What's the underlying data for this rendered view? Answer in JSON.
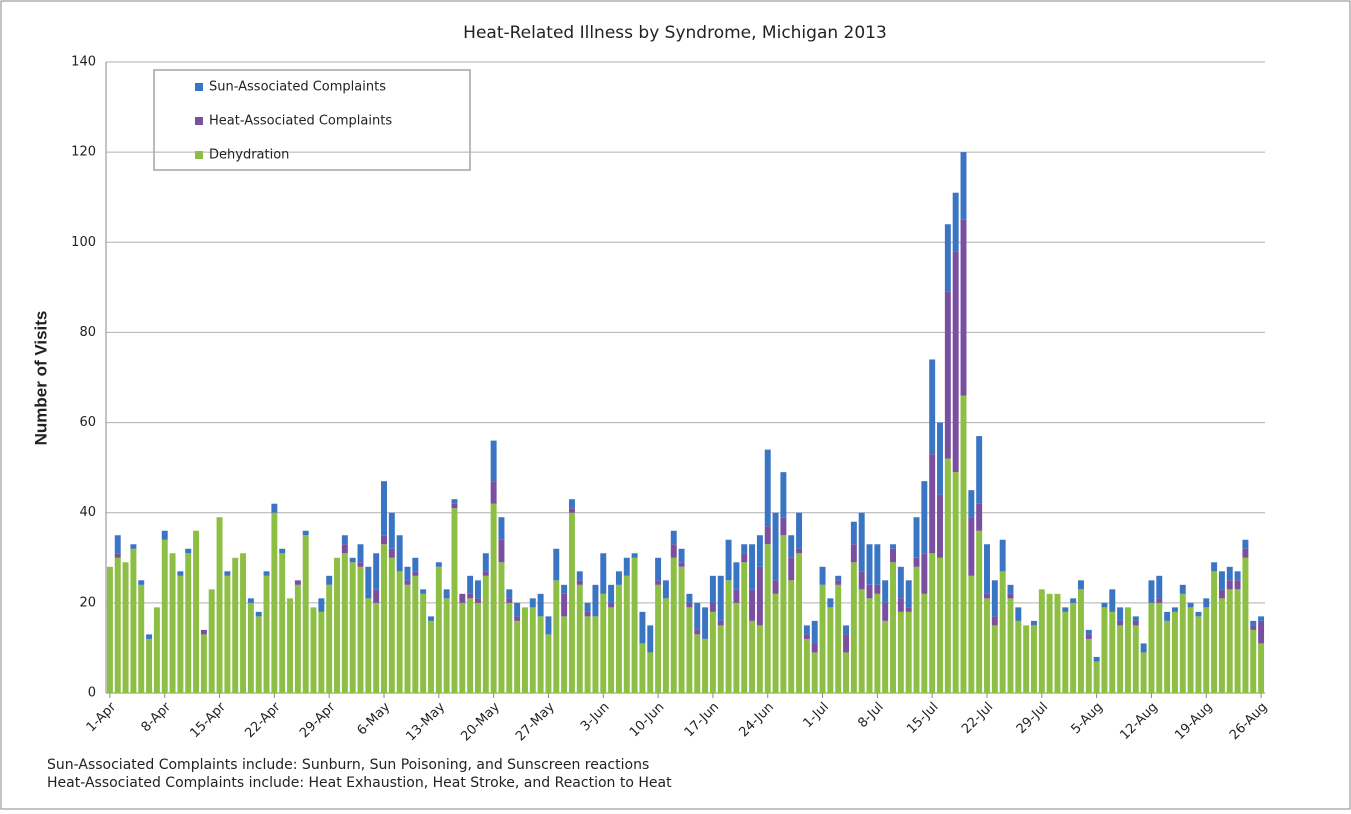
{
  "chart_data": {
    "type": "stacked-bar",
    "title": "Heat-Related Illness by Syndrome, Michigan 2013",
    "y_label": "Number of Visits",
    "notes": [
      "Sun-Associated Complaints include: Sunburn, Sun Poisoning, and Sunscreen reactions",
      "Heat-Associated Complaints include: Heat Exhaustion, Heat Stroke, and Reaction to Heat"
    ],
    "categories": [
      "1-Apr",
      null,
      null,
      null,
      null,
      null,
      null,
      "8-Apr",
      null,
      null,
      null,
      null,
      null,
      null,
      "15-Apr",
      null,
      null,
      null,
      null,
      null,
      null,
      "22-Apr",
      null,
      null,
      null,
      null,
      null,
      null,
      "29-Apr",
      null,
      null,
      null,
      null,
      null,
      null,
      "6-May",
      null,
      null,
      null,
      null,
      null,
      null,
      "13-May",
      null,
      null,
      null,
      null,
      null,
      null,
      "20-May",
      null,
      null,
      null,
      null,
      null,
      null,
      "27-May",
      null,
      null,
      null,
      null,
      null,
      null,
      "3-Jun",
      null,
      null,
      null,
      null,
      null,
      null,
      "10-Jun",
      null,
      null,
      null,
      null,
      null,
      null,
      "17-Jun",
      null,
      null,
      null,
      null,
      null,
      null,
      "24-Jun",
      null,
      null,
      null,
      null,
      null,
      null,
      "1-Jul",
      null,
      null,
      null,
      null,
      null,
      null,
      "8-Jul",
      null,
      null,
      null,
      null,
      null,
      null,
      "15-Jul",
      null,
      null,
      null,
      null,
      null,
      null,
      "22-Jul",
      null,
      null,
      null,
      null,
      null,
      null,
      "29-Jul",
      null,
      null,
      null,
      null,
      null,
      null,
      "5-Aug",
      null,
      null,
      null,
      null,
      null,
      null,
      "12-Aug",
      null,
      null,
      null,
      null,
      null,
      null,
      "19-Aug",
      null,
      null,
      null,
      null,
      null,
      null,
      "26-Aug"
    ],
    "series": [
      {
        "name": "Sun-Associated Complaints",
        "color": "#3a75c4",
        "values": [
          0,
          4,
          0,
          1,
          1,
          1,
          0,
          2,
          0,
          1,
          1,
          0,
          0,
          0,
          0,
          1,
          0,
          0,
          1,
          1,
          1,
          2,
          1,
          0,
          0,
          1,
          0,
          3,
          2,
          0,
          2,
          1,
          4,
          7,
          8,
          12,
          8,
          8,
          3,
          3,
          1,
          1,
          1,
          2,
          1,
          0,
          4,
          4,
          4,
          9,
          5,
          2,
          3,
          0,
          2,
          5,
          4,
          7,
          2,
          2,
          2,
          2,
          7,
          9,
          4,
          3,
          4,
          1,
          7,
          6,
          5,
          4,
          3,
          3,
          2,
          6,
          7,
          6,
          10,
          9,
          6,
          2,
          10,
          7,
          17,
          15,
          10,
          5,
          8,
          2,
          5,
          4,
          2,
          1,
          2,
          5,
          13,
          9,
          9,
          5,
          1,
          7,
          6,
          9,
          16,
          21,
          16,
          15,
          13,
          15,
          6,
          15,
          11,
          8,
          7,
          2,
          3,
          0,
          1,
          0,
          0,
          0,
          1,
          1,
          2,
          1,
          1,
          1,
          5,
          3,
          0,
          1,
          2,
          5,
          5,
          2,
          1,
          2,
          1,
          1,
          2,
          2,
          4,
          3,
          2,
          2,
          1,
          1
        ]
      },
      {
        "name": "Heat-Associated Complaints",
        "color": "#7a4fa0",
        "values": [
          0,
          1,
          0,
          0,
          0,
          0,
          0,
          0,
          0,
          0,
          0,
          0,
          1,
          0,
          0,
          0,
          0,
          0,
          0,
          0,
          0,
          0,
          0,
          0,
          1,
          0,
          0,
          0,
          0,
          0,
          2,
          0,
          1,
          0,
          3,
          2,
          2,
          0,
          1,
          1,
          0,
          0,
          0,
          0,
          1,
          2,
          1,
          1,
          1,
          5,
          5,
          1,
          1,
          0,
          0,
          0,
          0,
          0,
          5,
          1,
          1,
          1,
          0,
          0,
          1,
          0,
          0,
          0,
          0,
          0,
          1,
          0,
          3,
          1,
          1,
          1,
          0,
          2,
          1,
          0,
          3,
          2,
          7,
          13,
          4,
          3,
          4,
          5,
          1,
          1,
          2,
          0,
          0,
          1,
          4,
          4,
          4,
          3,
          2,
          4,
          3,
          3,
          1,
          2,
          9,
          22,
          14,
          37,
          49,
          39,
          13,
          6,
          1,
          2,
          0,
          1,
          0,
          0,
          0,
          0,
          0,
          0,
          0,
          0,
          0,
          1,
          0,
          0,
          0,
          1,
          0,
          1,
          0,
          0,
          1,
          0,
          0,
          0,
          0,
          0,
          0,
          0,
          2,
          2,
          2,
          2,
          1,
          5
        ]
      },
      {
        "name": "Dehydration",
        "color": "#8dbf45",
        "values": [
          28,
          30,
          29,
          32,
          24,
          12,
          19,
          34,
          31,
          26,
          31,
          36,
          13,
          23,
          39,
          26,
          30,
          31,
          20,
          17,
          26,
          40,
          31,
          21,
          24,
          35,
          19,
          18,
          24,
          30,
          31,
          29,
          28,
          21,
          20,
          33,
          30,
          27,
          24,
          26,
          22,
          16,
          28,
          21,
          41,
          20,
          21,
          20,
          26,
          42,
          29,
          20,
          16,
          19,
          19,
          17,
          13,
          25,
          17,
          40,
          24,
          17,
          17,
          22,
          19,
          24,
          26,
          30,
          11,
          9,
          24,
          21,
          30,
          28,
          19,
          13,
          12,
          18,
          15,
          25,
          20,
          29,
          16,
          15,
          33,
          22,
          35,
          25,
          31,
          12,
          9,
          24,
          19,
          24,
          9,
          29,
          23,
          21,
          22,
          16,
          29,
          18,
          18,
          28,
          22,
          31,
          30,
          52,
          49,
          66,
          26,
          36,
          21,
          15,
          27,
          21,
          16,
          15,
          15,
          23,
          22,
          22,
          18,
          20,
          23,
          12,
          7,
          19,
          18,
          15,
          19,
          15,
          9,
          20,
          20,
          16,
          18,
          22,
          19,
          17,
          19,
          27,
          21,
          23,
          23,
          30,
          14,
          11
        ]
      }
    ],
    "ylim": [
      0,
      140
    ],
    "yticks": [
      0,
      20,
      40,
      60,
      80,
      100,
      120,
      140
    ],
    "grid": true
  }
}
